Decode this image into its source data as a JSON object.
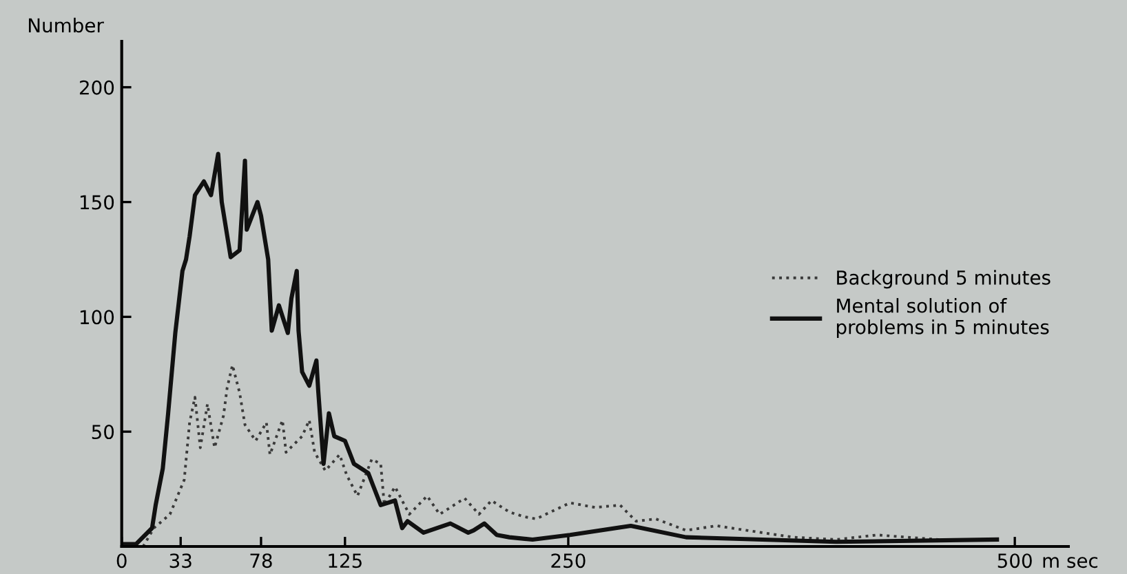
{
  "chart_data": {
    "type": "line",
    "xlabel": "m sec",
    "ylabel": "Number",
    "xlim": [
      0,
      530
    ],
    "ylim": [
      0,
      220
    ],
    "xticks": [
      0,
      33,
      78,
      125,
      250,
      {
        "value": 500,
        "label": "500"
      }
    ],
    "yticks": [
      50,
      100,
      150,
      200
    ],
    "grid": false,
    "legend": "right",
    "marker": "none",
    "series": [
      {
        "name": "Background 5 minutes",
        "color": "#3a3a3a",
        "line_style": "dotted",
        "x": [
          0,
          12,
          18,
          27,
          35,
          38,
          41,
          44,
          48,
          52,
          57,
          59,
          62,
          66,
          69,
          75,
          81,
          83,
          90,
          92,
          101,
          105,
          108,
          114,
          122,
          126,
          132,
          140,
          145,
          147,
          153,
          161,
          171,
          178,
          192,
          200,
          207,
          217,
          225,
          232,
          251,
          265,
          279,
          288,
          299,
          316,
          333,
          350,
          376,
          400,
          423,
          457,
          490
        ],
        "values": [
          0,
          0,
          8,
          14,
          29,
          54,
          65,
          43,
          62,
          43,
          57,
          69,
          79,
          67,
          53,
          46,
          54,
          40,
          55,
          41,
          48,
          55,
          41,
          33,
          40,
          31,
          22,
          38,
          36,
          18,
          26,
          14,
          22,
          14,
          21,
          14,
          20,
          15,
          13,
          12,
          19,
          17,
          18,
          11,
          12,
          7,
          9,
          7,
          4,
          3,
          5,
          3,
          3
        ]
      },
      {
        "name": "Mental solution of\nproblems in 5 minutes",
        "color": "#111111",
        "line_style": "solid",
        "x": [
          0,
          8,
          17,
          19,
          23,
          26,
          30,
          34,
          36,
          38,
          41,
          46,
          50,
          54,
          56,
          61,
          66,
          69,
          70,
          76,
          78,
          82,
          84,
          88,
          93,
          95,
          98,
          99,
          101,
          105,
          109,
          110,
          113,
          116,
          119,
          125,
          130,
          138,
          141,
          145,
          153,
          157,
          160,
          169,
          184,
          194,
          197,
          203,
          210,
          217,
          230,
          251,
          285,
          316,
          400,
          490
        ],
        "values": [
          1,
          1,
          8,
          18,
          34,
          58,
          93,
          120,
          125,
          135,
          153,
          159,
          153,
          171,
          150,
          126,
          129,
          168,
          138,
          150,
          144,
          125,
          94,
          105,
          93,
          108,
          120,
          94,
          76,
          70,
          81,
          68,
          36,
          58,
          48,
          46,
          36,
          32,
          26,
          18,
          20,
          8,
          11,
          6,
          10,
          6,
          7,
          10,
          5,
          4,
          3,
          5,
          9,
          4,
          2,
          3
        ]
      }
    ]
  }
}
